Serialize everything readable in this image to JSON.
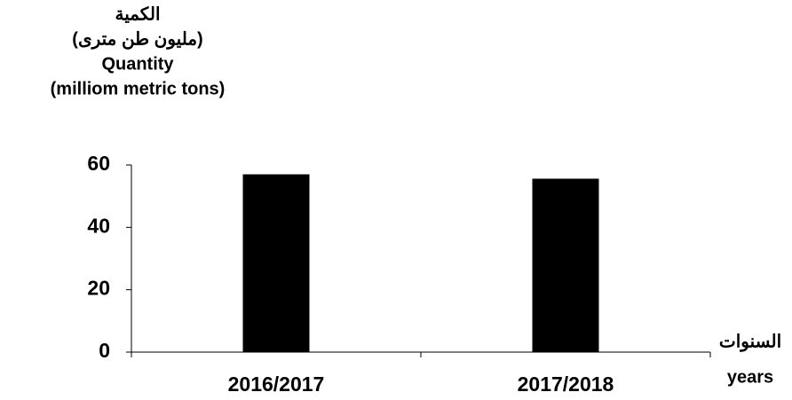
{
  "chart_data": {
    "type": "bar",
    "y_label": [
      "الكمية",
      "(مليون طن مترى)",
      "Quantity",
      "(milliom metric tons)"
    ],
    "x_label": [
      "السنوات",
      "years"
    ],
    "categories": [
      "2016/2017",
      "2017/2018"
    ],
    "values": [
      57,
      55.6
    ],
    "color": "#000000",
    "ylim": [
      0,
      60
    ],
    "yticks": [
      0,
      20,
      40,
      60
    ],
    "grid": false
  }
}
